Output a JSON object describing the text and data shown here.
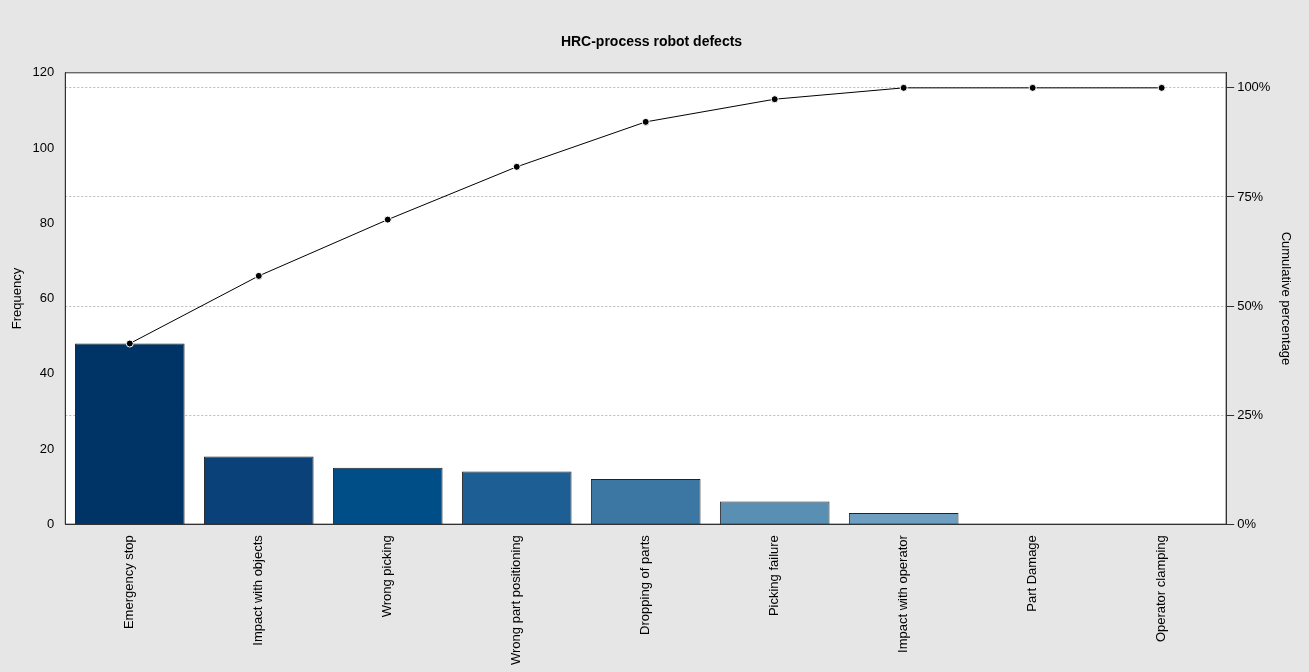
{
  "chart_data": {
    "type": "bar",
    "title": "HRC-process robot defects",
    "ylabel": "Frequency",
    "y2label": "Cumulative percentage",
    "categories": [
      "Emergency stop",
      "Impact with objects",
      "Wrong picking",
      "Wrong part positioning",
      "Dropping of parts",
      "Picking failure",
      "Impact with operator",
      "Part Damage",
      "Operator clamping"
    ],
    "series": [
      {
        "colors": [
          "#003366",
          "#0a4178",
          "#004e88",
          "#1d5f95",
          "#3c76a3",
          "#5a8fb4",
          "#6e9ec0",
          "#80aacb",
          "#90b5d3"
        ],
        "values": [
          48,
          18,
          15,
          14,
          12,
          6,
          3,
          0,
          0
        ]
      },
      {
        "type": "line",
        "axis": "y2",
        "color": "#000000",
        "marker": "circle",
        "line_style": "solid",
        "values": [
          41.4,
          56.9,
          69.8,
          81.9,
          92.2,
          97.4,
          100,
          100,
          100
        ]
      }
    ],
    "ylim": [
      0,
      120
    ],
    "yticks": [
      0,
      20,
      40,
      60,
      80,
      100,
      120
    ],
    "y2lim": [
      0,
      103.45
    ],
    "y2ticks": [
      {
        "value": 0,
        "label": "0%"
      },
      {
        "value": 25,
        "label": "25%"
      },
      {
        "value": 50,
        "label": "50%"
      },
      {
        "value": 75,
        "label": "75%"
      },
      {
        "value": 100,
        "label": "100%"
      }
    ],
    "grid": true,
    "legend": false
  }
}
